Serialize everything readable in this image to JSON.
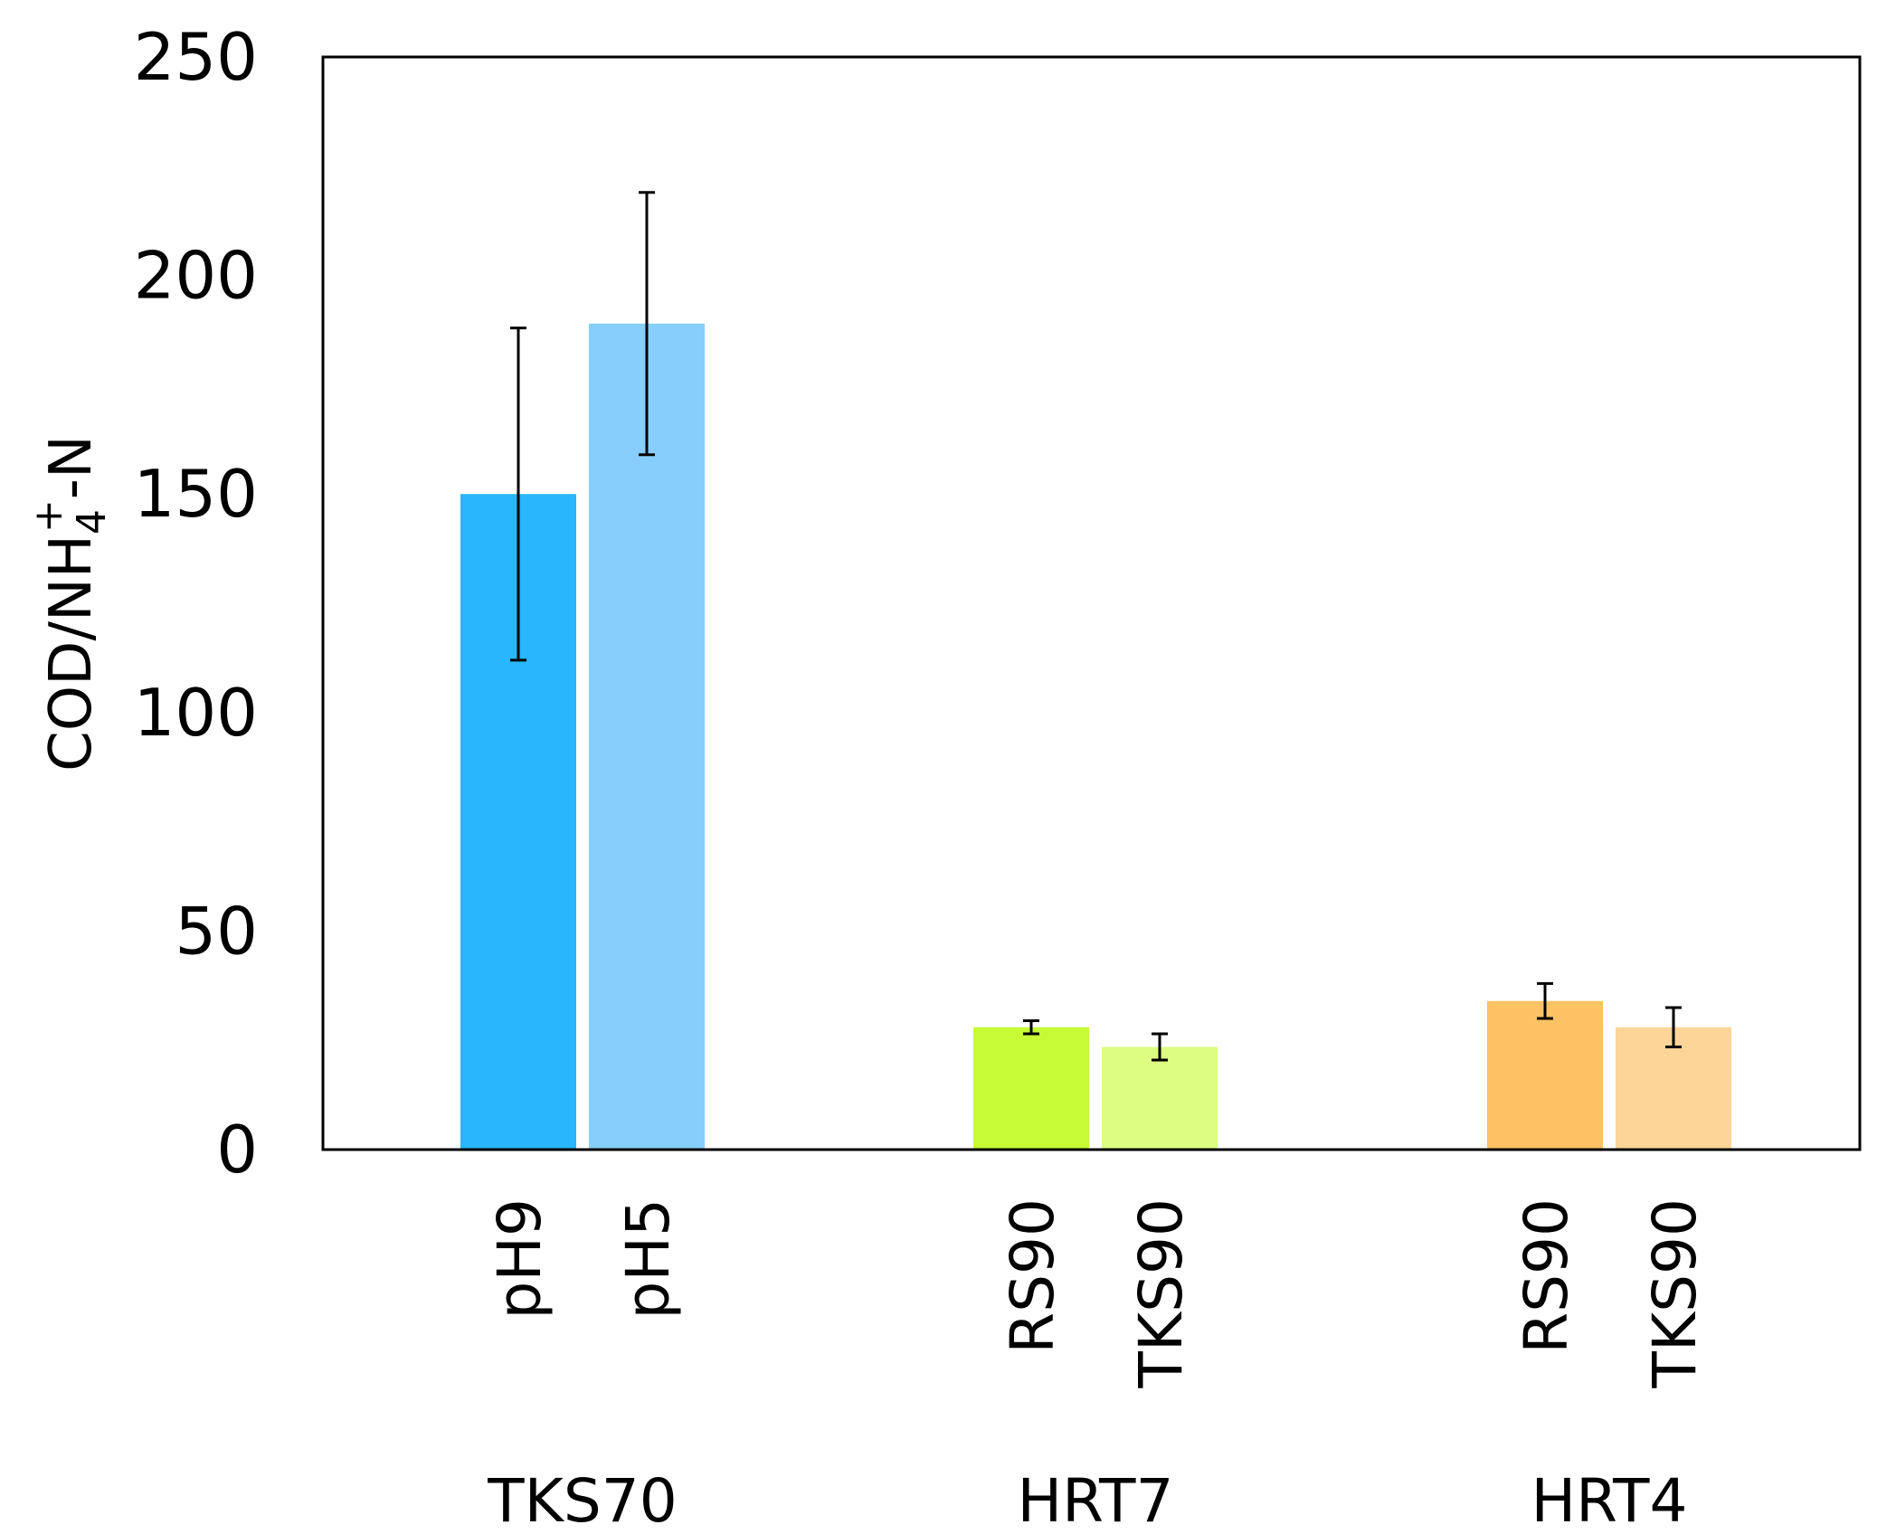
{
  "chart_data": {
    "type": "bar",
    "title": "",
    "xlabel": "",
    "ylabel": {
      "main": "COD/NH",
      "subscript": "4",
      "superscript": "+",
      "suffix": "-N"
    },
    "ylim": [
      0,
      250
    ],
    "yticks": [
      0,
      50,
      100,
      150,
      200,
      250
    ],
    "grid": false,
    "groups": [
      {
        "label": "TKS70",
        "bars": [
          {
            "label": "pH9",
            "value": 150,
            "err_low": 112,
            "err_high": 188,
            "color": "#29b6fc"
          },
          {
            "label": "pH5",
            "value": 189,
            "err_low": 159,
            "err_high": 219,
            "color": "#88cefd"
          }
        ]
      },
      {
        "label": "HRT7",
        "bars": [
          {
            "label": "RS90",
            "value": 28,
            "err_low": 26.5,
            "err_high": 29.5,
            "color": "#c6fb36"
          },
          {
            "label": "TKS90",
            "value": 23.5,
            "err_low": 20.5,
            "err_high": 26.5,
            "color": "#dcfd82"
          }
        ]
      },
      {
        "label": "HRT4",
        "bars": [
          {
            "label": "RS90",
            "value": 34,
            "err_low": 30,
            "err_high": 38,
            "color": "#fdc264"
          },
          {
            "label": "TKS90",
            "value": 28,
            "err_low": 23.5,
            "err_high": 32.5,
            "color": "#fdd598"
          }
        ]
      }
    ]
  }
}
